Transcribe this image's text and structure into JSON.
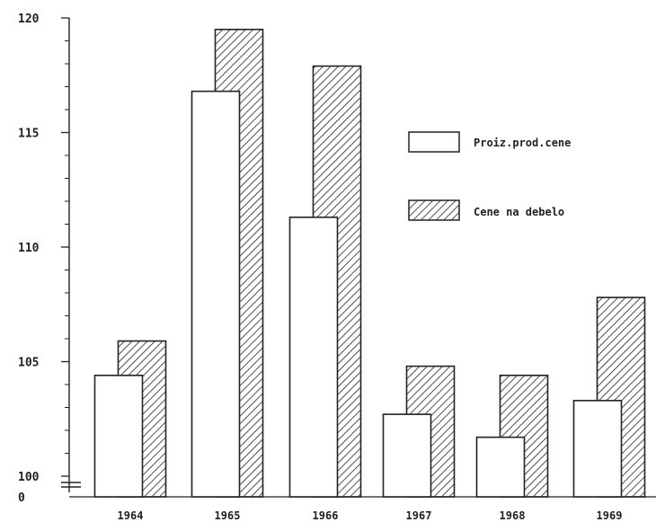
{
  "chart_data": {
    "type": "bar",
    "categories": [
      "1964",
      "1965",
      "1966",
      "1967",
      "1968",
      "1969"
    ],
    "series": [
      {
        "name": "Proiz.prod.cene",
        "values": [
          104.4,
          116.8,
          111.3,
          102.7,
          101.7,
          103.3
        ],
        "fill": "none"
      },
      {
        "name": "Cene na debelo",
        "values": [
          105.9,
          119.5,
          117.9,
          104.8,
          104.4,
          107.8
        ],
        "fill": "hatch"
      }
    ],
    "y_ticks": [
      "120",
      "115",
      "110",
      "105",
      "100",
      "0"
    ],
    "ylim": [
      100,
      120
    ],
    "axis_break": true,
    "grid": false,
    "legend_position": "right",
    "colors": {
      "ink": "#222222",
      "paper": "#ffffff"
    }
  }
}
